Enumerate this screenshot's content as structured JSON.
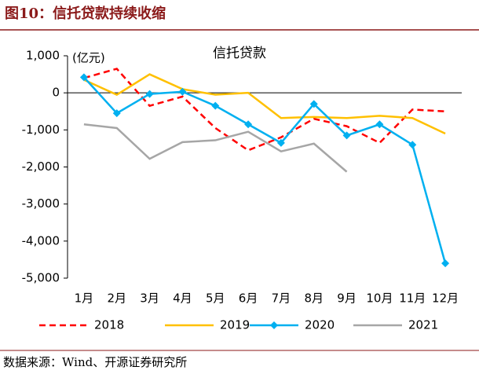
{
  "header": {
    "title": "图10：信托贷款持续收缩"
  },
  "chart_data": {
    "type": "line",
    "title": "信托贷款",
    "y_label": "(亿元)",
    "categories": [
      "1月",
      "2月",
      "3月",
      "4月",
      "5月",
      "6月",
      "7月",
      "8月",
      "9月",
      "10月",
      "11月",
      "12月"
    ],
    "series": [
      {
        "name": "2018",
        "color": "#FF0000",
        "dash": true,
        "values": [
          400,
          650,
          -350,
          -100,
          -950,
          -1550,
          -1200,
          -700,
          -900,
          -1350,
          -450,
          -500
        ]
      },
      {
        "name": "2019",
        "color": "#FFC000",
        "values": [
          350,
          -50,
          500,
          100,
          -50,
          0,
          -680,
          -650,
          -680,
          -620,
          -680,
          -1100
        ]
      },
      {
        "name": "2020",
        "color": "#00B0F0",
        "marker": "diamond",
        "values": [
          420,
          -550,
          -30,
          30,
          -350,
          -850,
          -1350,
          -300,
          -1150,
          -850,
          -1400,
          -4600
        ]
      },
      {
        "name": "2021",
        "color": "#A6A6A6",
        "values": [
          -850,
          -950,
          -1780,
          -1330,
          -1280,
          -1050,
          -1580,
          -1370,
          -2130,
          null,
          null,
          null
        ]
      }
    ],
    "ylim": [
      -5000,
      1000
    ],
    "yticks": [
      {
        "value": 1000,
        "label": "1,000"
      },
      0,
      {
        "value": -1000,
        "label": "-1,000"
      },
      {
        "value": -2000,
        "label": "-2,000"
      },
      {
        "value": -3000,
        "label": "-3,000"
      },
      {
        "value": -4000,
        "label": "-4,000"
      },
      {
        "value": -5000,
        "label": "-5,000"
      }
    ],
    "legend": "bottom"
  },
  "footer": {
    "source": "数据来源：Wind、开源证券研究所"
  }
}
